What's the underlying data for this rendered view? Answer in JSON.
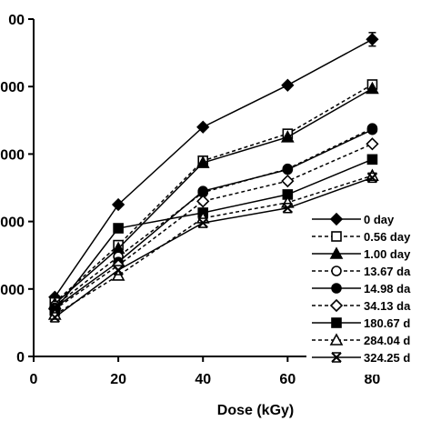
{
  "chart_data": {
    "type": "line",
    "xlabel": "Dose (kGy)",
    "ylabel": "",
    "xlim": [
      0,
      90
    ],
    "ylim": [
      0,
      500
    ],
    "x_ticks": [
      "0",
      "20",
      "40",
      "60",
      "80"
    ],
    "y_ticks": [
      "0",
      "100",
      "200",
      "300",
      "400",
      "500"
    ],
    "y_tick_labels_visible": [
      "0",
      "000",
      "000",
      "000",
      "000",
      "00"
    ],
    "grid": false,
    "legend_position": "bottom-right",
    "x": [
      5,
      20,
      40,
      60,
      80
    ],
    "series": [
      {
        "name": "0 day",
        "marker": "diamond-filled",
        "line": "solid",
        "values": [
          88,
          225,
          340,
          402,
          470
        ],
        "error_last": 10
      },
      {
        "name": "0.56 day",
        "marker": "square-open",
        "line": "dashed",
        "values": [
          80,
          165,
          290,
          330,
          403
        ]
      },
      {
        "name": "1.00 day",
        "marker": "triangle-filled",
        "line": "solid",
        "values": [
          78,
          160,
          287,
          325,
          397
        ]
      },
      {
        "name": "13.67 da",
        "marker": "circle-open",
        "line": "dashed",
        "values": [
          75,
          148,
          243,
          278,
          338
        ]
      },
      {
        "name": "14.98 da",
        "marker": "circle-filled",
        "line": "solid",
        "values": [
          72,
          140,
          245,
          277,
          336
        ]
      },
      {
        "name": "34.13 da",
        "marker": "diamond-open",
        "line": "dashed",
        "values": [
          70,
          135,
          230,
          260,
          315
        ]
      },
      {
        "name": "180.67 d",
        "marker": "square-filled",
        "line": "solid",
        "values": [
          68,
          190,
          213,
          240,
          292
        ]
      },
      {
        "name": "284.04 d",
        "marker": "triangle-open",
        "line": "dashed",
        "values": [
          62,
          120,
          205,
          228,
          268
        ]
      },
      {
        "name": "324.25 d",
        "marker": "x",
        "line": "solid",
        "values": [
          58,
          128,
          198,
          220,
          265
        ]
      }
    ]
  }
}
